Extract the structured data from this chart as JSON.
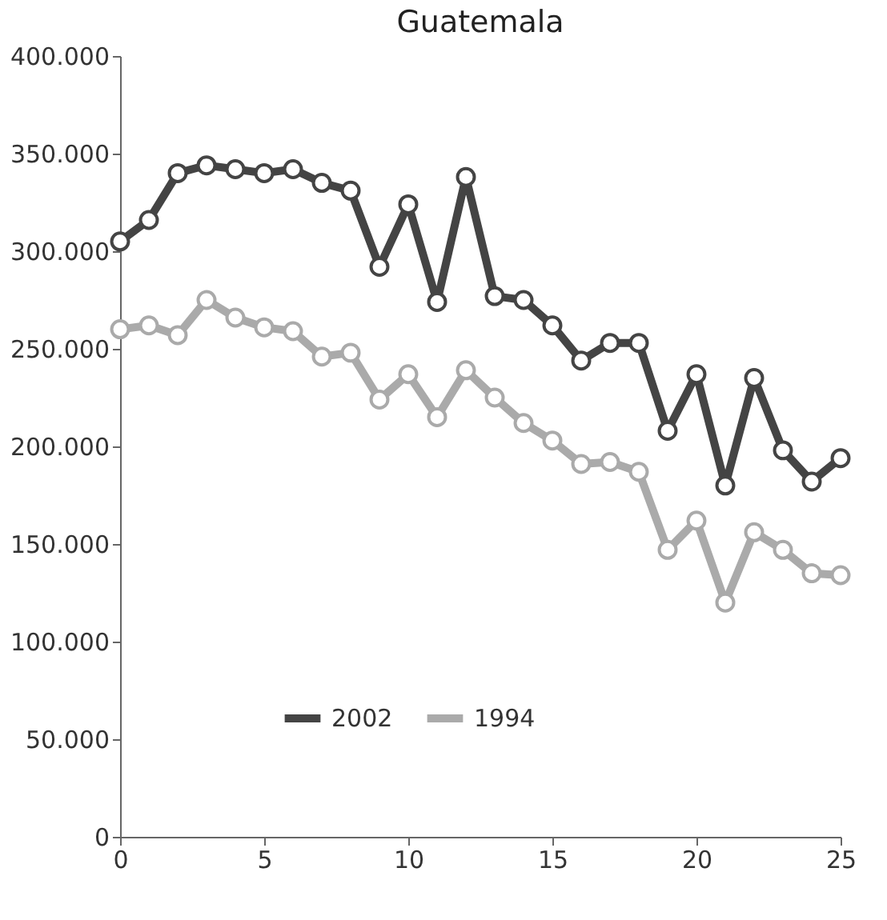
{
  "chart_data": {
    "type": "line",
    "title": "Guatemala",
    "x": [
      0,
      1,
      2,
      3,
      4,
      5,
      6,
      7,
      8,
      9,
      10,
      11,
      12,
      13,
      14,
      15,
      16,
      17,
      18,
      19,
      20,
      21,
      22,
      23,
      24,
      25
    ],
    "series": [
      {
        "name": "2002",
        "color": "#444444",
        "values": [
          305000,
          316000,
          340000,
          344000,
          342000,
          340000,
          342000,
          335000,
          331000,
          292000,
          324000,
          274000,
          338000,
          277000,
          275000,
          262000,
          244000,
          253000,
          253000,
          208000,
          237000,
          180000,
          235000,
          198000,
          182000,
          194000
        ]
      },
      {
        "name": "1994",
        "color": "#aaaaaa",
        "values": [
          260000,
          262000,
          257000,
          275000,
          266000,
          261000,
          259000,
          246000,
          248000,
          224000,
          237000,
          215000,
          239000,
          225000,
          212000,
          203000,
          191000,
          192000,
          187000,
          147000,
          162000,
          120000,
          156000,
          147000,
          135000,
          134000
        ]
      }
    ],
    "xlim": [
      0,
      25
    ],
    "xticks": [
      0,
      5,
      10,
      15,
      20,
      25
    ],
    "ylim": [
      0,
      400000
    ],
    "yticks": [
      {
        "value": 0,
        "label": "0"
      },
      {
        "value": 50000,
        "label": "50.000"
      },
      {
        "value": 100000,
        "label": "100.000"
      },
      {
        "value": 150000,
        "label": "150.000"
      },
      {
        "value": 200000,
        "label": "200.000"
      },
      {
        "value": 250000,
        "label": "250.000"
      },
      {
        "value": 300000,
        "label": "300.000"
      },
      {
        "value": 350000,
        "label": "350.000"
      },
      {
        "value": 400000,
        "label": "400.000"
      }
    ],
    "grid": false,
    "legend": "bottom",
    "marker": "circle",
    "line_style": "solid"
  }
}
